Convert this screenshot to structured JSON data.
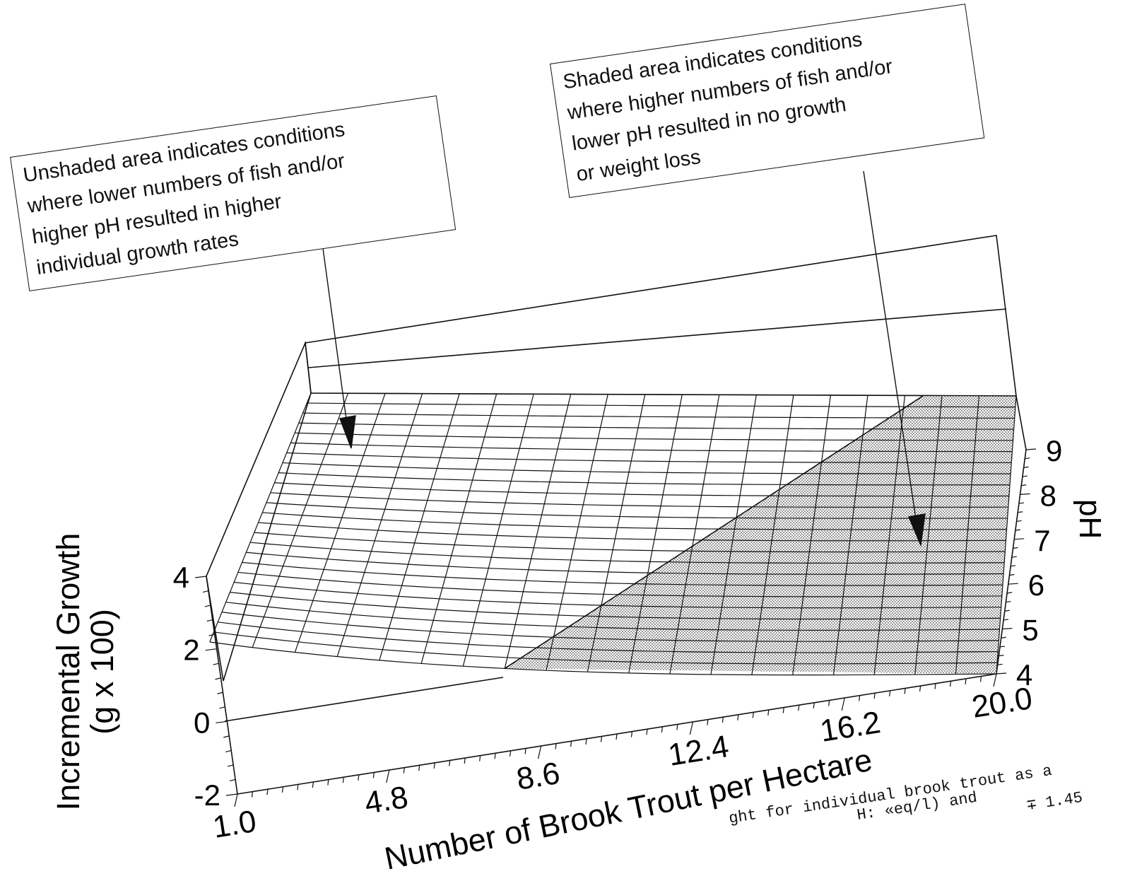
{
  "chart_data": {
    "type": "surface",
    "x": {
      "label": "Number of Brook Trout per Hectare",
      "ticks": [
        "1.0",
        "4.8",
        "8.6",
        "12.4",
        "16.2",
        "20.0"
      ],
      "range": [
        1.0,
        20.0
      ]
    },
    "y": {
      "label": "pH",
      "ticks": [
        "4",
        "5",
        "6",
        "7",
        "8",
        "9"
      ],
      "range": [
        4,
        9
      ]
    },
    "z": {
      "label_line1": "Incremental Growth",
      "label_line2": "(g x 100)",
      "ticks": [
        "-2",
        "0",
        "2",
        "4"
      ],
      "range": [
        -2,
        4
      ]
    },
    "surface": {
      "grid_x_divisions": 19,
      "grid_y_divisions": 25,
      "shaded_region_boundary": [
        [
          8.0,
          4
        ],
        [
          17.5,
          9
        ]
      ],
      "shaded_meaning": "no growth or weight loss",
      "unshaded_meaning": "higher individual growth rates"
    },
    "annotations": {
      "left_callout": [
        "Unshaded area indicates conditions",
        "where lower numbers of fish and/or",
        "higher pH resulted in higher",
        "individual growth rates"
      ],
      "right_callout": [
        "Shaded area indicates conditions",
        "where higher numbers of fish and/or",
        "lower pH resulted in no growth",
        "or weight loss"
      ]
    },
    "caption_fragment": [
      "ght for individual brook trout as a",
      "H: «eq/l) and",
      "∓ 1.45"
    ],
    "colors": {
      "line": "#111111",
      "shade": "#cfcfcf",
      "background": "#ffffff"
    }
  }
}
